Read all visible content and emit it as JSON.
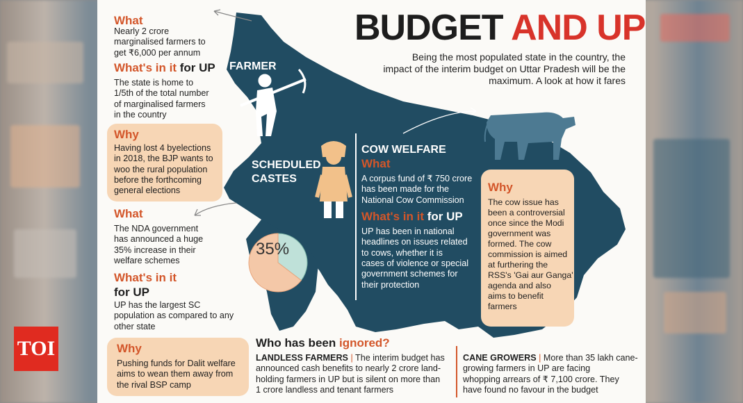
{
  "title": {
    "part1": "BUDGET",
    "part2": "AND UP"
  },
  "intro": [
    "Being the most populated state in the country, the",
    "impact of the interim budget on Uttar Pradesh will be the",
    "maximum. A look at how it fares"
  ],
  "farmer": {
    "label": "FARMER",
    "what_head": "What",
    "what_text": [
      "Nearly 2 crore",
      "marginalised farmers to",
      "get ₹6,000 per annum"
    ],
    "whats_head_a": "What's in it",
    "whats_head_b": " for UP",
    "whats_text": [
      "The state is home to",
      "1/5th of the total number",
      "of marginalised farmers",
      "in the country"
    ],
    "why_head": "Why",
    "why_text": [
      "Having lost 4 byelections",
      "in 2018, the BJP wants to",
      "woo the rural population",
      "before the forthcoming",
      "general elections"
    ]
  },
  "sc": {
    "label": [
      "SCHEDULED",
      "CASTES"
    ],
    "what_head": "What",
    "what_text": [
      "The NDA government",
      "has announced a huge",
      "35% increase in their",
      "welfare schemes"
    ],
    "whats_head_a": "What's in it",
    "whats_head_b": "for UP",
    "whats_text": [
      "UP has the largest SC",
      "population as compared to any",
      "other state"
    ],
    "why_head": "Why",
    "why_text": [
      "Pushing funds for Dalit welfare",
      "aims to wean them away from",
      "the rival BSP camp"
    ],
    "pie_label": "35%",
    "pie_percent": 35
  },
  "cow": {
    "label": "COW WELFARE",
    "what_head": "What",
    "what_text": [
      "A corpus fund of ₹ 750 crore",
      "has been made for the",
      "National Cow Commission"
    ],
    "whats_head_a": "What's in it",
    "whats_head_b": " for UP",
    "whats_text": [
      "UP has been in national",
      "headlines on issues related",
      "to cows, whether it is",
      "cases of violence or special",
      "government schemes for",
      "their protection"
    ],
    "why_head": "Why",
    "why_text": [
      "The cow issue has",
      "been a controversial",
      "once since the Modi",
      "government was",
      "formed. The cow",
      "commission is aimed",
      "at furthering the",
      "RSS's 'Gai aur Ganga'",
      "agenda and also",
      "aims to benefit",
      " farmers"
    ]
  },
  "ignored": {
    "head_a": "Who has been ",
    "head_b": "ignored?",
    "landless_label": "LANDLESS FARMERS",
    "landless_first": " The interim budget has",
    "landless_text": [
      "announced cash benefits to nearly 2 crore land-",
      "holding farmers in UP but is silent on more than",
      "1 crore landless and tenant farmers"
    ],
    "cane_label": "CANE GROWERS",
    "cane_first": " More than 35 lakh cane-",
    "cane_text": [
      "growing farmers in UP are facing",
      "whopping arrears of ₹ 7,100 crore. They",
      "have found no favour in the budget"
    ]
  },
  "logo": "TOI",
  "colors": {
    "map": "#214c62",
    "orange": "#d3562a",
    "bubble": "#f7d6b5",
    "title_red": "#d8332a"
  }
}
